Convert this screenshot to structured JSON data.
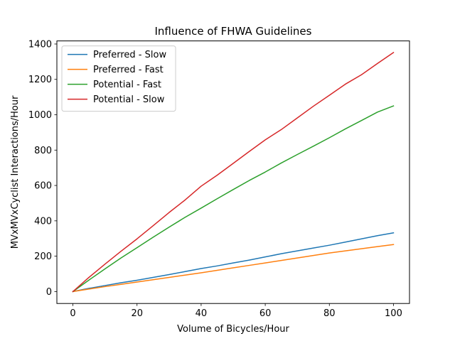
{
  "chart_data": {
    "type": "line",
    "title": "Influence of FHWA Guidelines",
    "xlabel": "Volume of Bicycles/Hour",
    "ylabel": "MVxMVxCyclist Interactions/Hour",
    "xlim": [
      -5,
      105
    ],
    "ylim": [
      -67.5,
      1417.5
    ],
    "xticks": [
      0,
      20,
      40,
      60,
      80,
      100
    ],
    "yticks": [
      0,
      200,
      400,
      600,
      800,
      1000,
      1200,
      1400
    ],
    "legend_position": "upper-left",
    "x": [
      0,
      5,
      10,
      15,
      20,
      25,
      30,
      35,
      40,
      45,
      50,
      55,
      60,
      65,
      70,
      75,
      80,
      85,
      90,
      95,
      100
    ],
    "series": [
      {
        "name": "Preferred - Slow",
        "color": "#1f77b4",
        "values": [
          0,
          18,
          34,
          50,
          64,
          80,
          96,
          113,
          130,
          145,
          162,
          178,
          196,
          214,
          230,
          246,
          262,
          280,
          298,
          316,
          332
        ]
      },
      {
        "name": "Preferred - Fast",
        "color": "#ff7f0e",
        "values": [
          0,
          14,
          28,
          41,
          54,
          67,
          80,
          93,
          106,
          120,
          134,
          148,
          162,
          176,
          190,
          204,
          218,
          230,
          242,
          254,
          266
        ]
      },
      {
        "name": "Potential - Fast",
        "color": "#2ca02c",
        "values": [
          0,
          65,
          128,
          190,
          248,
          307,
          364,
          420,
          472,
          525,
          577,
          628,
          676,
          727,
          775,
          822,
          870,
          920,
          967,
          1015,
          1050
        ]
      },
      {
        "name": "Potential - Slow",
        "color": "#d62728",
        "values": [
          0,
          80,
          155,
          228,
          298,
          372,
          447,
          518,
          596,
          658,
          725,
          792,
          858,
          916,
          982,
          1048,
          1110,
          1173,
          1226,
          1290,
          1352
        ]
      }
    ]
  }
}
